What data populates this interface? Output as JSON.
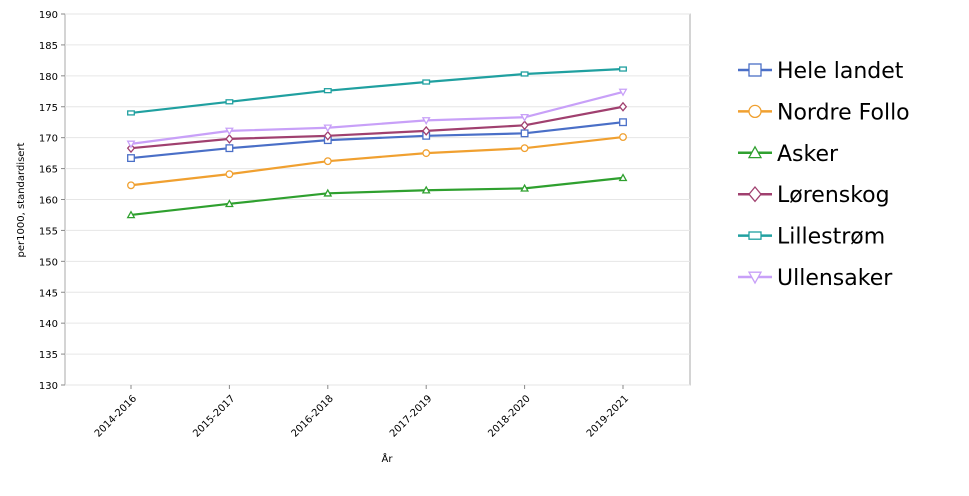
{
  "chart_data": {
    "type": "line",
    "x_label": "År",
    "y_label": "per1000, standardisert",
    "categories": [
      "2014-2016",
      "2015-2017",
      "2016-2018",
      "2017-2019",
      "2018-2020",
      "2019-2021"
    ],
    "ylim": [
      130,
      190
    ],
    "yticks": [
      130,
      135,
      140,
      145,
      150,
      155,
      160,
      165,
      170,
      175,
      180,
      185,
      190
    ],
    "grid": true,
    "legend": "right",
    "series": [
      {
        "name": "Hele landet",
        "color": "#4a6fc7",
        "marker": "square",
        "values": [
          166.7,
          168.3,
          169.6,
          170.3,
          170.7,
          172.5
        ]
      },
      {
        "name": "Nordre Follo",
        "color": "#f0a030",
        "marker": "circle",
        "values": [
          162.3,
          164.1,
          166.2,
          167.5,
          168.3,
          170.1
        ]
      },
      {
        "name": "Asker",
        "color": "#2fa02f",
        "marker": "triangle-up",
        "values": [
          157.5,
          159.3,
          161.0,
          161.5,
          161.8,
          163.5
        ]
      },
      {
        "name": "Lørenskog",
        "color": "#a0406f",
        "marker": "diamond",
        "values": [
          168.3,
          169.8,
          170.3,
          171.1,
          172.0,
          175.0
        ]
      },
      {
        "name": "Lillestrøm",
        "color": "#20a0a0",
        "marker": "rect",
        "values": [
          174.0,
          175.8,
          177.6,
          179.0,
          180.3,
          181.1
        ]
      },
      {
        "name": "Ullensaker",
        "color": "#c8a0f8",
        "marker": "triangle-down",
        "values": [
          169.0,
          171.1,
          171.6,
          172.8,
          173.3,
          177.4
        ]
      }
    ]
  }
}
